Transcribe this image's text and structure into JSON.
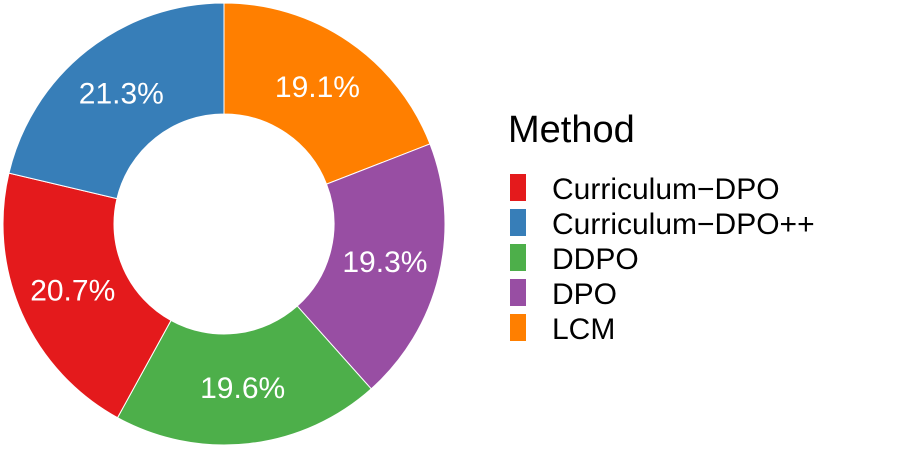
{
  "chart_data": {
    "type": "pie",
    "donut": true,
    "legend_title": "Method",
    "legend_position": "right",
    "slices": [
      {
        "label": "LCM",
        "value": 19.1,
        "text": "19.1%",
        "color": "#FF7F00"
      },
      {
        "label": "DPO",
        "value": 19.3,
        "text": "19.3%",
        "color": "#984EA3"
      },
      {
        "label": "DDPO",
        "value": 19.6,
        "text": "19.6%",
        "color": "#4DAF4A"
      },
      {
        "label": "Curriculum−DPO",
        "value": 20.7,
        "text": "20.7%",
        "color": "#E41A1C"
      },
      {
        "label": "Curriculum−DPO++",
        "value": 21.3,
        "text": "21.3%",
        "color": "#377EB8"
      }
    ],
    "legend_order": [
      "Curriculum−DPO",
      "Curriculum−DPO++",
      "DDPO",
      "DPO",
      "LCM"
    ]
  }
}
